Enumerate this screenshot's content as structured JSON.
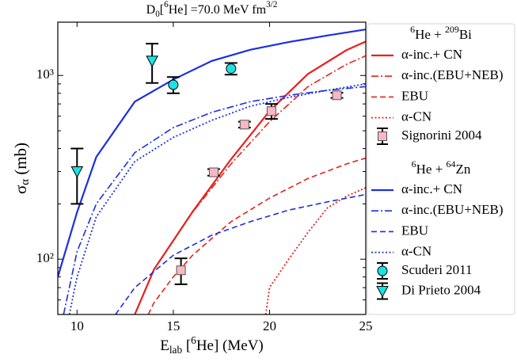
{
  "chart_data": {
    "type": "line",
    "title": [
      {
        "text": "D"
      },
      {
        "text": "0",
        "shift": "sub"
      },
      {
        "text": "["
      },
      {
        "text": "6",
        "shift": "sup"
      },
      {
        "text": "He] =70.0 MeV fm"
      },
      {
        "text": "3/2",
        "shift": "sup"
      }
    ],
    "xlabel": [
      {
        "text": "E"
      },
      {
        "text": "lab",
        "shift": "sub"
      },
      {
        "text": " ["
      },
      {
        "text": "6",
        "shift": "sup"
      },
      {
        "text": "He] (MeV)"
      }
    ],
    "ylabel": [
      {
        "text": "σ"
      },
      {
        "text": "α",
        "shift": "sub"
      },
      {
        "text": " (mb)"
      }
    ],
    "xlim": [
      9,
      25
    ],
    "xticks": [
      10,
      15,
      20,
      25
    ],
    "ylim": [
      50,
      1950
    ],
    "yscale": "log",
    "yticks": [
      {
        "value": 100,
        "label": "10²"
      },
      {
        "value": 1000,
        "label": "10³"
      }
    ],
    "yminorticks": [
      60,
      70,
      80,
      90,
      200,
      300,
      400,
      500,
      600,
      700,
      800,
      900
    ],
    "groups": [
      {
        "title": [
          {
            "text": "6",
            "shift": "sup"
          },
          {
            "text": "He + "
          },
          {
            "text": "209",
            "shift": "sup"
          },
          {
            "text": "Bi"
          }
        ],
        "lines": [
          {
            "name": "α-inc.+ CN",
            "color": "#e8211d",
            "dash": "solid",
            "x": [
              13,
              14,
              16,
              18,
              20,
              22,
              24,
              25
            ],
            "values": [
              50,
              88,
              181,
              350,
              640,
              1020,
              1374,
              1530
            ]
          },
          {
            "name": "α-inc.(EBU+NEB)",
            "color": "#e8211d",
            "dash": "dashdot",
            "x": [
              13,
              14,
              16,
              18,
              20,
              22,
              24,
              25
            ],
            "values": [
              50,
              88,
              180,
              330,
              560,
              870,
              1150,
              1280
            ]
          },
          {
            "name": "EBU",
            "color": "#e8211d",
            "dash": "dashed",
            "x": [
              13.7,
              14,
              15,
              16,
              18,
              20,
              22,
              24,
              25
            ],
            "values": [
              50,
              58,
              80,
              105,
              160,
              215,
              275,
              330,
              355
            ]
          },
          {
            "name": "α-CN",
            "color": "#e8211d",
            "dash": "dotted",
            "x": [
              19.8,
              20,
              21,
              22,
              23,
              24,
              25
            ],
            "values": [
              50,
              70,
              100,
              140,
              190,
              220,
              245
            ]
          }
        ],
        "points": [
          {
            "name": "Signorini 2004",
            "marker": "square",
            "color": "#f7b8c4",
            "x": [
              15.4,
              17.1,
              18.7,
              20.1,
              23.5
            ],
            "values": [
              87,
              297,
              540,
              640,
              780
            ],
            "yerr": [
              14,
              12,
              20,
              60,
              25
            ]
          }
        ]
      },
      {
        "title": [
          {
            "text": "6",
            "shift": "sup"
          },
          {
            "text": "He + "
          },
          {
            "text": "64",
            "shift": "sup"
          },
          {
            "text": "Zn"
          }
        ],
        "lines": [
          {
            "name": "α-inc.+ CN",
            "color": "#1c2fe0",
            "dash": "solid",
            "x": [
              9,
              10,
              11,
              13,
              15,
              17,
              19,
              21,
              23,
              25
            ],
            "values": [
              80,
              180,
              360,
              720,
              950,
              1200,
              1380,
              1520,
              1650,
              1780
            ]
          },
          {
            "name": "α-inc.(EBU+NEB)",
            "color": "#1c2fe0",
            "dash": "dashdot",
            "x": [
              9.3,
              10,
              11,
              13,
              15,
              17,
              19,
              21,
              23,
              25
            ],
            "values": [
              50,
              110,
              200,
              380,
              520,
              630,
              720,
              780,
              830,
              870
            ]
          },
          {
            "name": "EBU",
            "color": "#1c2fe0",
            "dash": "dashed",
            "x": [
              12,
              13,
              15,
              17,
              19,
              21,
              23,
              25
            ],
            "values": [
              50,
              70,
              105,
              135,
              160,
              185,
              205,
              225
            ]
          },
          {
            "name": "α-CN",
            "color": "#1c2fe0",
            "dash": "dotted",
            "x": [
              9.6,
              10,
              11,
              13,
              15,
              17,
              19,
              21,
              23,
              25
            ],
            "values": [
              50,
              80,
              170,
              340,
              460,
              570,
              680,
              760,
              830,
              900
            ]
          }
        ],
        "points": [
          {
            "name": "Scuderi 2011",
            "marker": "circle",
            "color": "#19e3e3",
            "x": [
              15,
              18
            ],
            "values": [
              890,
              1090
            ],
            "yerr": [
              90,
              80
            ]
          },
          {
            "name": "Di Prieto 2004",
            "marker": "triangle",
            "color": "#19e3e3",
            "x": [
              10,
              13.9
            ],
            "values": [
              300,
              1200
            ],
            "yerr": [
              100,
              290
            ]
          }
        ]
      }
    ]
  }
}
